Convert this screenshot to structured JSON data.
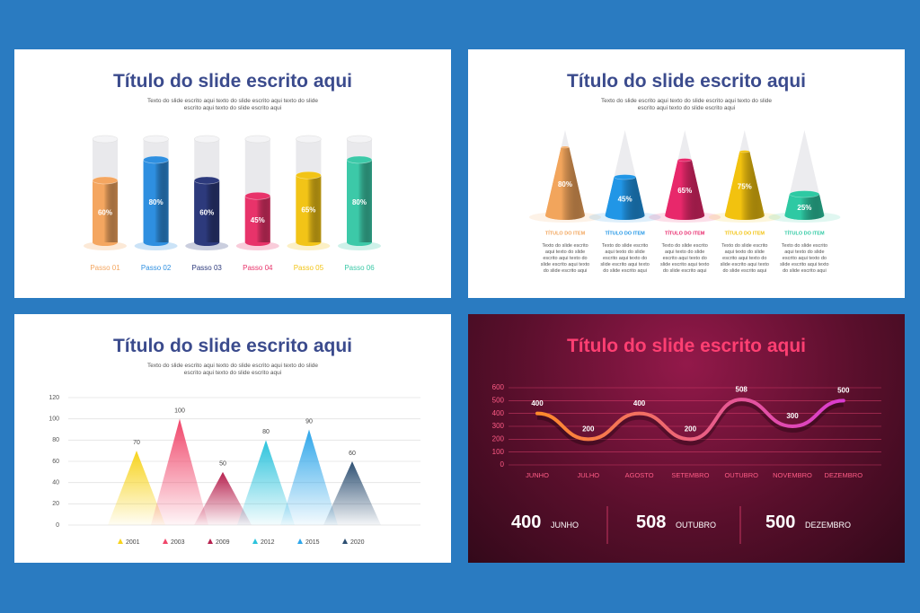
{
  "chart_data": [
    {
      "type": "cylinder",
      "title": "Título do slide escrito aqui",
      "subtitle": "Texto do slide escrito aqui texto do slide escrito aqui texto do slide escrito aqui texto do slide escrito aqui",
      "categories": [
        "Passo 01",
        "Passo 02",
        "Passo 03",
        "Passo 04",
        "Passo 05",
        "Passo 06"
      ],
      "values": [
        60,
        80,
        60,
        45,
        65,
        80
      ],
      "value_labels": [
        "60%",
        "80%",
        "60%",
        "45%",
        "65%",
        "80%"
      ],
      "colors": [
        "#f4a660",
        "#2e8fe0",
        "#2d3a7c",
        "#e8336a",
        "#f2c417",
        "#3cc9a8"
      ]
    },
    {
      "type": "cone",
      "title": "Título do slide escrito aqui",
      "subtitle": "Texto do slide escrito aqui texto do slide escrito aqui texto do slide escrito aqui texto do slide escrito aqui",
      "categories": [
        "TÍTULO DO ITEM",
        "TÍTULO DO ITEM",
        "TÍTULO DO ITEM",
        "TÍTULO DO ITEM",
        "TÍTULO DO ITEM"
      ],
      "values": [
        80,
        45,
        65,
        75,
        25
      ],
      "value_labels": [
        "80%",
        "45%",
        "65%",
        "75%",
        "25%"
      ],
      "descriptions": [
        "Texto do slide escrito aqui texto do slide escrito aqui texto do slide escrito aqui texto do slide escrito aqui",
        "Texto do slide escrito aqui texto do slide escrito aqui texto do slide escrito aqui texto do slide escrito aqui",
        "Texto do slide escrito aqui texto do slide escrito aqui texto do slide escrito aqui texto do slide escrito aqui",
        "Texto do slide escrito aqui texto do slide escrito aqui texto do slide escrito aqui texto do slide escrito aqui",
        "Texto do slide escrito aqui texto do slide escrito aqui texto do slide escrito aqui texto do slide escrito aqui"
      ],
      "colors": [
        "#f2a55c",
        "#2196e6",
        "#e8286b",
        "#f2c20f",
        "#2ec9a3"
      ]
    },
    {
      "type": "triangle",
      "title": "Título do slide escrito aqui",
      "subtitle": "Texto do slide escrito aqui texto do slide escrito aqui texto do slide escrito aqui texto do slide escrito aqui",
      "categories": [
        "2001",
        "2003",
        "2009",
        "2012",
        "2015",
        "2020"
      ],
      "values": [
        70,
        100,
        50,
        80,
        90,
        60
      ],
      "colors": [
        "#f7d31c",
        "#f0466a",
        "#b7224f",
        "#2cc3dc",
        "#2ea6ea",
        "#2d4f72"
      ],
      "ylim": [
        0,
        120
      ],
      "yticks": [
        0,
        20,
        40,
        60,
        80,
        100,
        120
      ],
      "grid": true
    },
    {
      "type": "line",
      "title": "Título do slide escrito aqui",
      "categories": [
        "JUNHO",
        "JULHO",
        "AGOSTO",
        "SETEMBRO",
        "OUTUBRO",
        "NOVEMBRO",
        "DEZEMBRO"
      ],
      "values": [
        400,
        200,
        400,
        200,
        508,
        300,
        500
      ],
      "ylim": [
        0,
        600
      ],
      "yticks": [
        0,
        100,
        200,
        300,
        400,
        500,
        600
      ],
      "grid": true,
      "colors": [
        "#ff8a2a",
        "#d93bd0"
      ],
      "stats": [
        {
          "value": 400,
          "label": "JUNHO"
        },
        {
          "value": 508,
          "label": "OUTUBRO"
        },
        {
          "value": 500,
          "label": "DEZEMBRO"
        }
      ]
    }
  ]
}
